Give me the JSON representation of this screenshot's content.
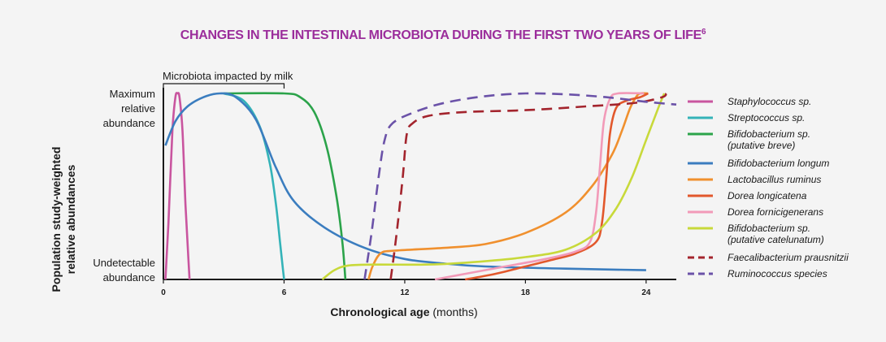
{
  "chart_data": {
    "type": "line",
    "title": "CHANGES IN THE INTESTINAL MICROBIOTA DURING THE FIRST TWO YEARS OF LIFE",
    "title_superscript": "6",
    "title_color": "#9b2d9b",
    "xlabel_bold": "Chronological age",
    "xlabel_rest": " (months)",
    "ylabel_line1": "Population study-weighted",
    "ylabel_line2": "relative abundances",
    "y_top_label": [
      "Maximum",
      "relative",
      "abundance"
    ],
    "y_bottom_label": [
      "Undetectable",
      "abundance"
    ],
    "xlim": [
      0,
      25.5
    ],
    "ylim": [
      0,
      1
    ],
    "x_ticks": [
      {
        "value": 0,
        "label": "0"
      },
      {
        "value": 6,
        "label": "6"
      },
      {
        "value": 12,
        "label": "12"
      },
      {
        "value": 18,
        "label": "18"
      },
      {
        "value": 24,
        "label": "24"
      }
    ],
    "annotation": {
      "text": "Microbiota impacted by milk",
      "x_start": 0,
      "x_end": 6
    },
    "series": [
      {
        "name": "Staphylococcus sp.",
        "subname": "",
        "color": "#c9559f",
        "dash": false,
        "points": [
          [
            0.1,
            0
          ],
          [
            0.25,
            0.3
          ],
          [
            0.45,
            0.8
          ],
          [
            0.6,
            0.98
          ],
          [
            0.7,
            1.0
          ],
          [
            0.8,
            0.98
          ],
          [
            0.95,
            0.8
          ],
          [
            1.1,
            0.4
          ],
          [
            1.25,
            0.1
          ],
          [
            1.3,
            0
          ]
        ]
      },
      {
        "name": "Streptococcus sp.",
        "subname": "",
        "color": "#34b3b8",
        "dash": false,
        "points": [
          [
            3,
            1.0
          ],
          [
            4,
            0.96
          ],
          [
            4.8,
            0.82
          ],
          [
            5.3,
            0.62
          ],
          [
            5.6,
            0.4
          ],
          [
            5.8,
            0.2
          ],
          [
            5.95,
            0.05
          ],
          [
            6,
            0
          ]
        ]
      },
      {
        "name": "Bifidobacterium sp.",
        "subname": "(putative breve)",
        "color": "#2ba34a",
        "dash": false,
        "points": [
          [
            3,
            1.0
          ],
          [
            6,
            1.0
          ],
          [
            6.8,
            0.98
          ],
          [
            7.5,
            0.9
          ],
          [
            8.1,
            0.72
          ],
          [
            8.6,
            0.45
          ],
          [
            8.9,
            0.2
          ],
          [
            9.05,
            0
          ]
        ]
      },
      {
        "name": "Bifidobacterium longum",
        "subname": "",
        "color": "#3b7dbf",
        "dash": false,
        "points": [
          [
            0.1,
            0.72
          ],
          [
            0.6,
            0.85
          ],
          [
            1.2,
            0.93
          ],
          [
            2,
            0.98
          ],
          [
            2.8,
            1.0
          ],
          [
            3.6,
            0.98
          ],
          [
            4.6,
            0.86
          ],
          [
            5.6,
            0.6
          ],
          [
            6.5,
            0.42
          ],
          [
            8,
            0.28
          ],
          [
            10,
            0.17
          ],
          [
            12,
            0.11
          ],
          [
            14,
            0.085
          ],
          [
            16,
            0.07
          ],
          [
            20,
            0.058
          ],
          [
            24,
            0.05
          ]
        ]
      },
      {
        "name": "Lactobacillus ruminus",
        "subname": "",
        "color": "#f0902e",
        "dash": false,
        "points": [
          [
            10.2,
            0
          ],
          [
            10.4,
            0.07
          ],
          [
            10.8,
            0.14
          ],
          [
            11.5,
            0.155
          ],
          [
            14,
            0.17
          ],
          [
            16,
            0.19
          ],
          [
            18,
            0.25
          ],
          [
            20,
            0.36
          ],
          [
            21.3,
            0.5
          ],
          [
            22.3,
            0.67
          ],
          [
            22.8,
            0.8
          ],
          [
            23.2,
            0.92
          ],
          [
            23.5,
            0.98
          ],
          [
            23.7,
            1.0
          ],
          [
            24.1,
            1.0
          ]
        ]
      },
      {
        "name": "Dorea longicatena",
        "subname": "",
        "color": "#e2582c",
        "dash": false,
        "points": [
          [
            15,
            0
          ],
          [
            16.5,
            0.03
          ],
          [
            18,
            0.07
          ],
          [
            19.5,
            0.11
          ],
          [
            20.5,
            0.14
          ],
          [
            21.5,
            0.2
          ],
          [
            21.8,
            0.3
          ],
          [
            22,
            0.52
          ],
          [
            22.2,
            0.78
          ],
          [
            22.5,
            0.92
          ],
          [
            23,
            0.96
          ],
          [
            23.7,
            0.98
          ],
          [
            24.1,
            1.0
          ]
        ]
      },
      {
        "name": "Dorea fornicigenerans",
        "subname": "",
        "color": "#f29ab8",
        "dash": false,
        "points": [
          [
            13.5,
            0
          ],
          [
            15,
            0.03
          ],
          [
            17,
            0.07
          ],
          [
            19,
            0.11
          ],
          [
            20.5,
            0.15
          ],
          [
            21.2,
            0.2
          ],
          [
            21.5,
            0.35
          ],
          [
            21.7,
            0.6
          ],
          [
            21.9,
            0.85
          ],
          [
            22.2,
            0.97
          ],
          [
            22.6,
            1.0
          ],
          [
            23.9,
            1.0
          ]
        ]
      },
      {
        "name": "Bifidobacterium sp.",
        "subname": "(putative catelunatum)",
        "color": "#c8d93a",
        "dash": false,
        "points": [
          [
            7.9,
            0
          ],
          [
            8.5,
            0.05
          ],
          [
            9.2,
            0.075
          ],
          [
            10.5,
            0.08
          ],
          [
            13,
            0.08
          ],
          [
            15,
            0.09
          ],
          [
            18,
            0.12
          ],
          [
            20,
            0.16
          ],
          [
            21.5,
            0.25
          ],
          [
            22.5,
            0.38
          ],
          [
            23.3,
            0.55
          ],
          [
            24,
            0.75
          ],
          [
            24.6,
            0.92
          ],
          [
            24.9,
            1.0
          ]
        ]
      },
      {
        "name": "Faecalibacterium prausnitzii",
        "subname": "",
        "color": "#a3242d",
        "dash": true,
        "points": [
          [
            11.3,
            0.0
          ],
          [
            11.6,
            0.25
          ],
          [
            11.9,
            0.55
          ],
          [
            12.1,
            0.78
          ],
          [
            12.4,
            0.84
          ],
          [
            13.2,
            0.88
          ],
          [
            15,
            0.9
          ],
          [
            18,
            0.91
          ],
          [
            21,
            0.93
          ],
          [
            23.5,
            0.95
          ],
          [
            24.8,
            0.98
          ],
          [
            25,
            1.0
          ]
        ]
      },
      {
        "name": "Ruminococcus species",
        "subname": "",
        "color": "#6b52a8",
        "dash": true,
        "points": [
          [
            10,
            0.0
          ],
          [
            10.35,
            0.25
          ],
          [
            10.7,
            0.55
          ],
          [
            11,
            0.75
          ],
          [
            11.4,
            0.84
          ],
          [
            12.5,
            0.9
          ],
          [
            14,
            0.95
          ],
          [
            16,
            0.985
          ],
          [
            18,
            1.0
          ],
          [
            20,
            0.995
          ],
          [
            22,
            0.98
          ],
          [
            24,
            0.955
          ],
          [
            25.5,
            0.94
          ]
        ]
      }
    ]
  }
}
